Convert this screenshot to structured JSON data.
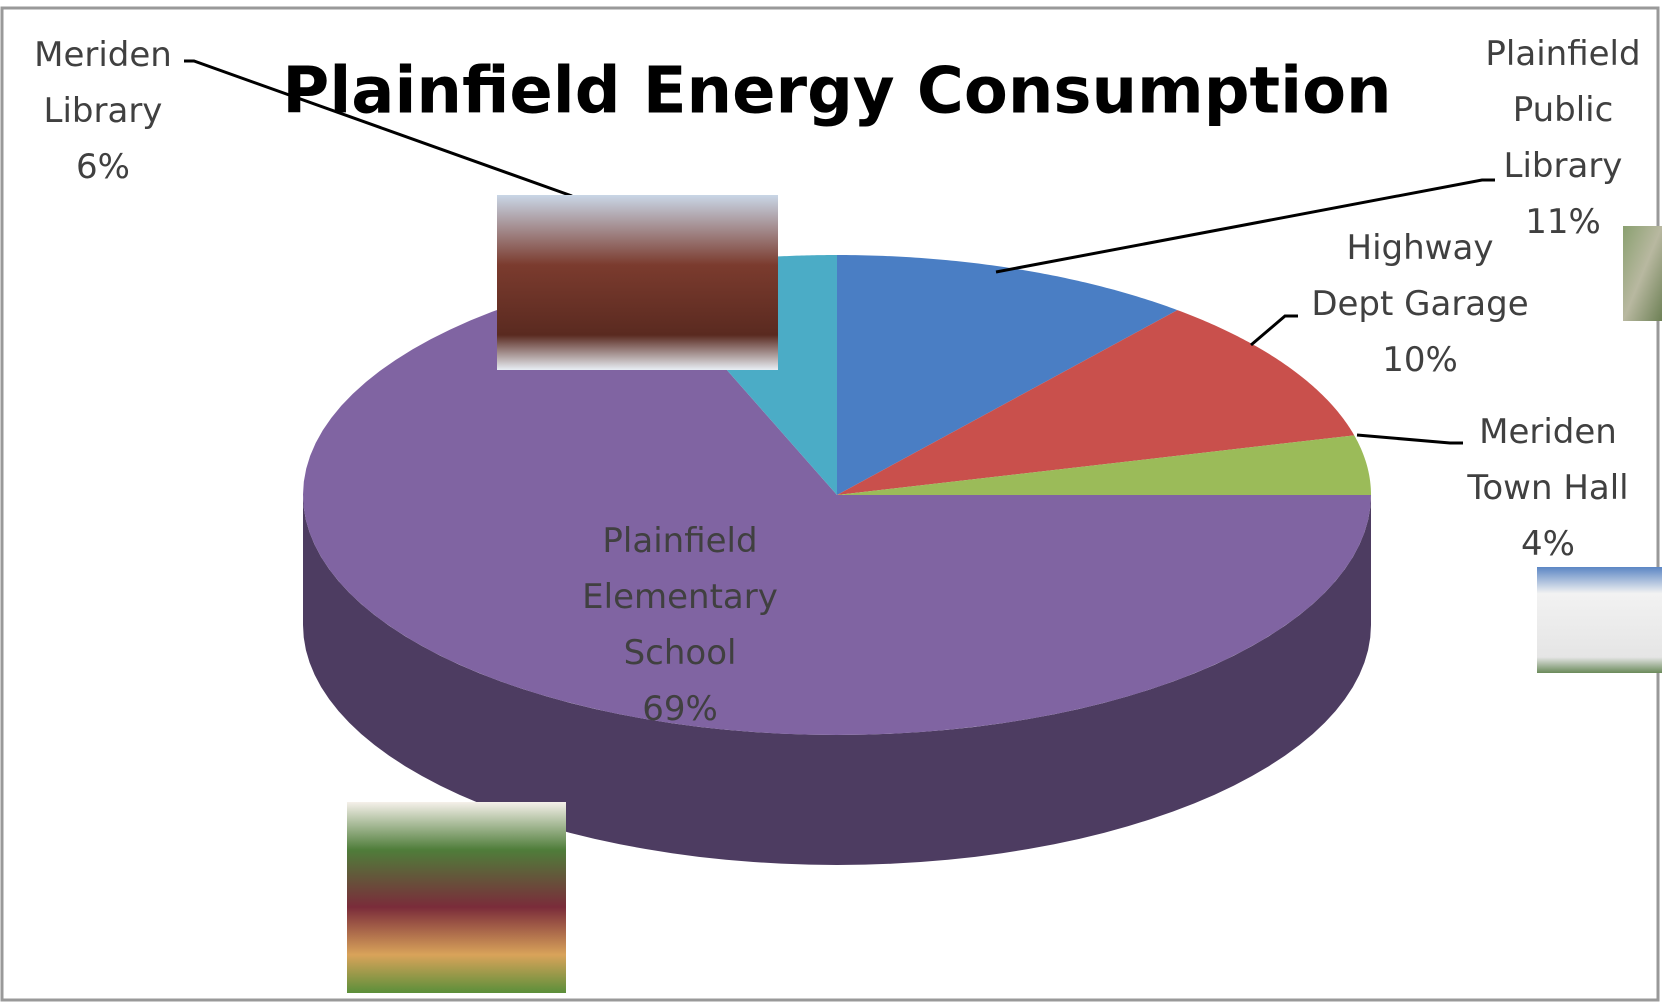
{
  "chart_data": {
    "type": "pie3d",
    "title": "Plainfield Energy Consumption",
    "categories": [
      "Plainfield Public Library",
      "Highway Dept Garage",
      "Meriden Town Hall",
      "Plainfield Elementary School",
      "Meriden Library"
    ],
    "values": [
      11,
      10,
      4,
      69,
      6
    ],
    "value_labels": [
      "11%",
      "10%",
      "4%",
      "69%",
      "6%"
    ],
    "colors": [
      "#4a7ec4",
      "#c9504c",
      "#9bbb59",
      "#8064a2",
      "#4bacc6"
    ]
  }
}
